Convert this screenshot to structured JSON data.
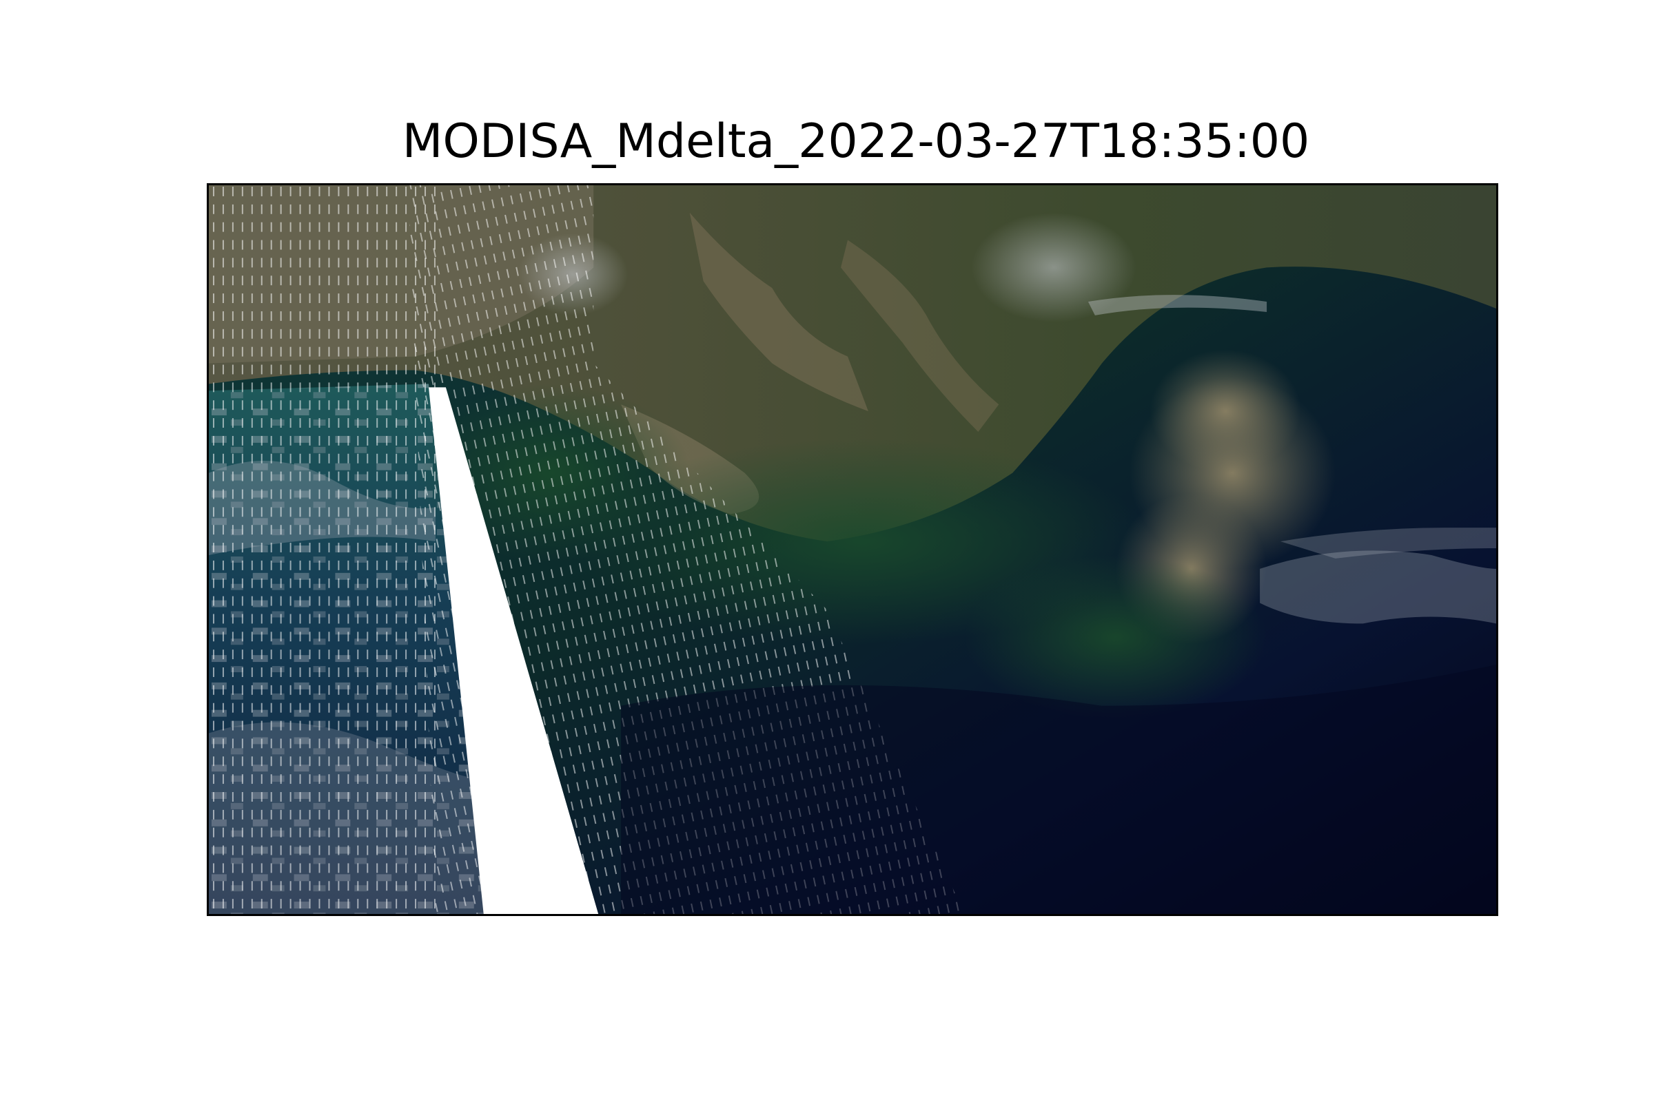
{
  "title": "MODISA_Mdelta_2022-03-27T18:35:00",
  "image": {
    "kind": "satellite true-color scene",
    "colors": {
      "land_green": "#38402a",
      "land_tan": "#6d6a55",
      "coast_sediment": "#7d7660",
      "shallow_water": "#123c34",
      "deep_water": "#05081c",
      "cloud": "#9ba2ae",
      "swath_gap": "#ffffff",
      "frame": "#000000"
    }
  }
}
